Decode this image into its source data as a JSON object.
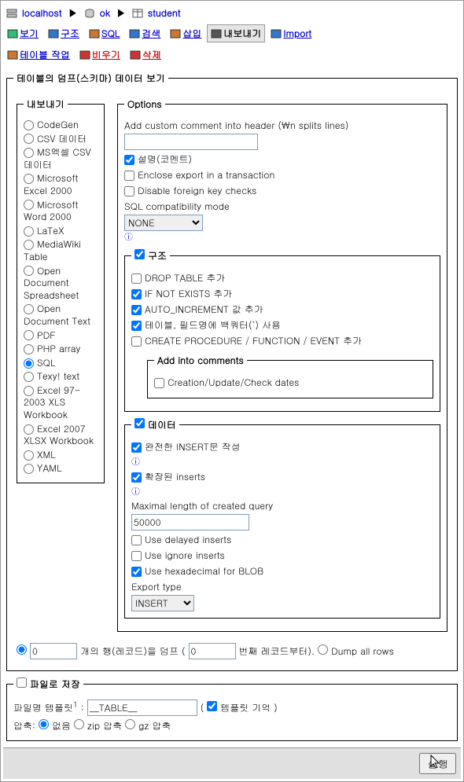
{
  "breadcrumb": {
    "host": "localhost",
    "db": "ok",
    "table": "student"
  },
  "tabs_row1": [
    {
      "label": "보기",
      "cls": "blue",
      "icon": "#3b7"
    },
    {
      "label": "구조",
      "cls": "blue",
      "icon": "#37c"
    },
    {
      "label": "SQL",
      "cls": "blue",
      "icon": "#c73"
    },
    {
      "label": "검색",
      "cls": "blue",
      "icon": "#37c"
    },
    {
      "label": "삽입",
      "cls": "blue",
      "icon": "#c73"
    },
    {
      "label": "내보내기",
      "cls": "black",
      "icon": "#555",
      "active": true
    },
    {
      "label": "Import",
      "cls": "blue",
      "icon": "#37c"
    }
  ],
  "tabs_row2": [
    {
      "label": "테이블 작업",
      "cls": "blue",
      "icon": "#c73"
    },
    {
      "label": "비우기",
      "cls": "red",
      "icon": "#c33"
    },
    {
      "label": "삭제",
      "cls": "red",
      "icon": "#c33"
    }
  ],
  "main_legend": "테이블의 덤프(스키마) 데이터 보기",
  "export_legend": "내보내기",
  "export_formats": [
    {
      "label": "CodeGen",
      "checked": false
    },
    {
      "label": "CSV 데이터",
      "checked": false
    },
    {
      "label": "MS엑셀 CSV 데이터",
      "checked": false
    },
    {
      "label": "Microsoft Excel 2000",
      "checked": false
    },
    {
      "label": "Microsoft Word 2000",
      "checked": false
    },
    {
      "label": "LaTeX",
      "checked": false
    },
    {
      "label": "MediaWiki Table",
      "checked": false
    },
    {
      "label": "Open Document Spreadsheet",
      "checked": false
    },
    {
      "label": "Open Document Text",
      "checked": false
    },
    {
      "label": "PDF",
      "checked": false
    },
    {
      "label": "PHP array",
      "checked": false
    },
    {
      "label": "SQL",
      "checked": true
    },
    {
      "label": "Texy! text",
      "checked": false
    },
    {
      "label": "Excel 97-2003 XLS Workbook",
      "checked": false
    },
    {
      "label": "Excel 2007 XLSX Workbook",
      "checked": false
    },
    {
      "label": "XML",
      "checked": false
    },
    {
      "label": "YAML",
      "checked": false
    }
  ],
  "options": {
    "legend": "Options",
    "comment_label": "Add custom comment into header (\\n splits lines)",
    "comment_value": "",
    "desc_checked": true,
    "desc_label": "설명(코멘트)",
    "enclose_checked": false,
    "enclose_label": "Enclose export in a transaction",
    "fk_checked": false,
    "fk_label": "Disable foreign key checks",
    "compat_label": "SQL compatibility mode",
    "compat_value": "NONE"
  },
  "structure": {
    "legend_checked": true,
    "legend": "구조",
    "drop_checked": false,
    "drop_label": "DROP TABLE 추가",
    "ifnot_checked": true,
    "ifnot_label": "IF NOT EXISTS 추가",
    "auto_checked": true,
    "auto_label": "AUTO_INCREMENT 값 추가",
    "backquote_checked": true,
    "backquote_label": "테이블, 필드명에 백쿼터(`) 사용",
    "proc_checked": false,
    "proc_label": "CREATE PROCEDURE / FUNCTION / EVENT 추가",
    "comments_legend": "Add into comments",
    "dates_checked": false,
    "dates_label": "Creation/Update/Check dates"
  },
  "data": {
    "legend_checked": true,
    "legend": "데이터",
    "complete_checked": true,
    "complete_label": "완전한 INSERT문 작성",
    "extended_checked": true,
    "extended_label": "확장된 inserts",
    "maxlen_label": "Maximal length of created query",
    "maxlen_value": "50000",
    "delayed_checked": false,
    "delayed_label": "Use delayed inserts",
    "ignore_checked": false,
    "ignore_label": "Use ignore inserts",
    "hex_checked": true,
    "hex_label": "Use hexadecimal for BLOB",
    "exptype_label": "Export type",
    "exptype_value": "INSERT"
  },
  "dump": {
    "rows_value": "0",
    "rows_label1": "개의 행(레코드)을 덤프 (",
    "start_value": "0",
    "rows_label2": "번째 레코드부터).",
    "all_label": "Dump all rows"
  },
  "save": {
    "legend_checked": false,
    "legend": "파일로 저장",
    "template_label": "파일명 템플릿",
    "template_sup": "1",
    "template_value": "__TABLE__",
    "remember_checked": true,
    "remember_label": "템플릿 기억",
    "compress_label": "압축:",
    "none_label": "없음",
    "zip_label": "zip 압축",
    "gz_label": "gz 압축"
  },
  "submit_label": "실행"
}
